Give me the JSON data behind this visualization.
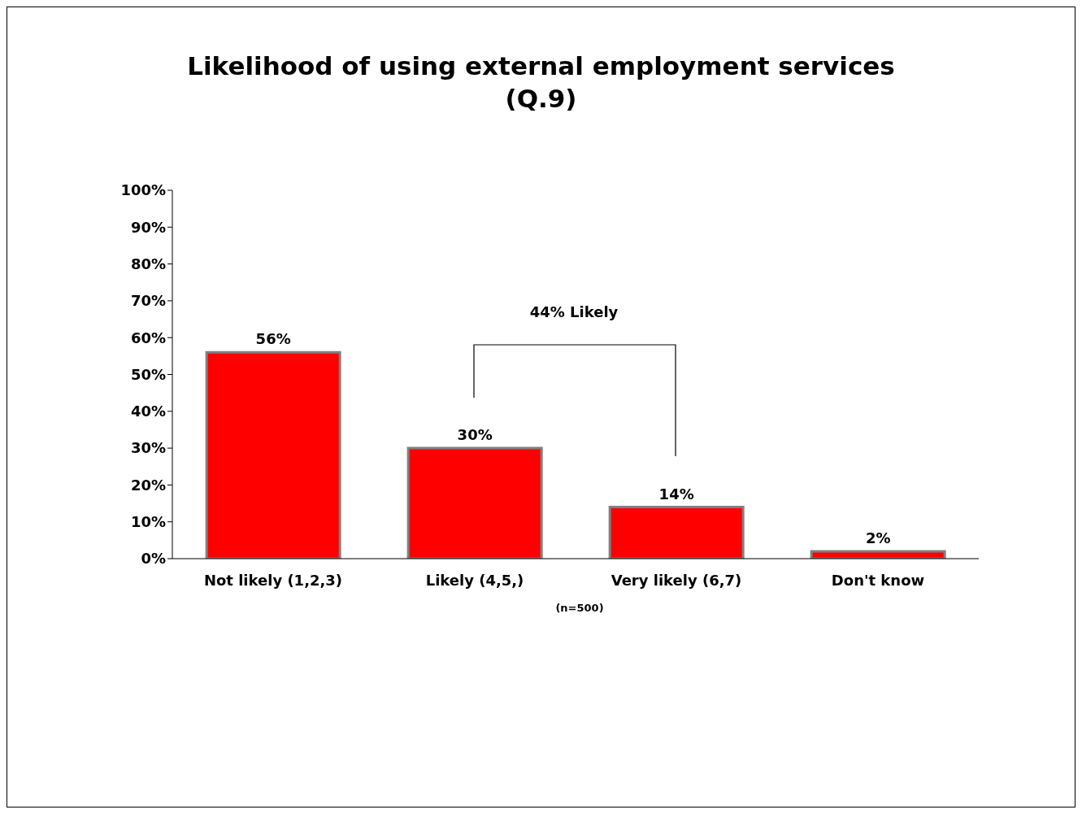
{
  "chart_data": {
    "type": "bar",
    "title": "Likelihood of using external employment services\n(Q.9)",
    "categories": [
      "Not likely (1,2,3)",
      "Likely (4,5,)",
      "Very likely (6,7)",
      "Don't know"
    ],
    "values": [
      56,
      30,
      14,
      2
    ],
    "color": "#ff0000",
    "value_labels": [
      "56%",
      "30%",
      "14%",
      "2%"
    ],
    "ylim": [
      0,
      100
    ],
    "yticks": [
      {
        "value": 0,
        "label": "0%"
      },
      {
        "value": 10,
        "label": "10%"
      },
      {
        "value": 20,
        "label": "20%"
      },
      {
        "value": 30,
        "label": "30%"
      },
      {
        "value": 40,
        "label": "40%"
      },
      {
        "value": 50,
        "label": "50%"
      },
      {
        "value": 60,
        "label": "60%"
      },
      {
        "value": 70,
        "label": "70%"
      },
      {
        "value": 80,
        "label": "80%"
      },
      {
        "value": 90,
        "label": "90%"
      },
      {
        "value": 100,
        "label": "100%"
      }
    ],
    "annotations": [
      "44% Likely",
      "(n=500)"
    ],
    "grid": false,
    "legend": false
  }
}
